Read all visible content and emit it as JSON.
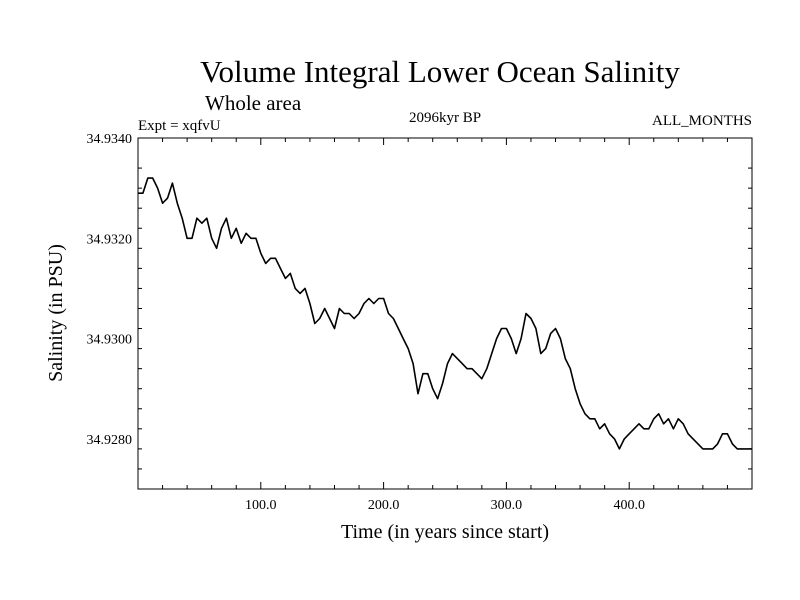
{
  "chart_data": {
    "type": "line",
    "title": "Volume Integral Lower Ocean Salinity",
    "subtitle": "Whole area",
    "experiment_label": "Expt = xqfvU",
    "period_label": "2096kyr BP",
    "months_label": "ALL_MONTHS",
    "xlabel": "Time (in years since start)",
    "ylabel": "Salinity (in PSU)",
    "xlim": [
      0,
      500
    ],
    "ylim": [
      34.927,
      34.934
    ],
    "xticks": [
      100,
      200,
      300,
      400
    ],
    "xtick_labels": [
      "100.0",
      "200.0",
      "300.0",
      "400.0"
    ],
    "yticks": [
      34.928,
      34.93,
      34.932,
      34.934
    ],
    "ytick_labels": [
      "34.9280",
      "34.9300",
      "34.9320",
      "34.9340"
    ],
    "grid": false,
    "series": [
      {
        "name": "Salinity",
        "color": "#000000",
        "x": [
          0,
          4,
          8,
          12,
          16,
          20,
          24,
          28,
          32,
          36,
          40,
          44,
          48,
          52,
          56,
          60,
          64,
          68,
          72,
          76,
          80,
          84,
          88,
          92,
          96,
          100,
          104,
          108,
          112,
          116,
          120,
          124,
          128,
          132,
          136,
          140,
          144,
          148,
          152,
          156,
          160,
          164,
          168,
          172,
          176,
          180,
          184,
          188,
          192,
          196,
          200,
          204,
          208,
          212,
          216,
          220,
          224,
          228,
          232,
          236,
          240,
          244,
          248,
          252,
          256,
          260,
          264,
          268,
          272,
          276,
          280,
          284,
          288,
          292,
          296,
          300,
          304,
          308,
          312,
          316,
          320,
          324,
          328,
          332,
          336,
          340,
          344,
          348,
          352,
          356,
          360,
          364,
          368,
          372,
          376,
          380,
          384,
          388,
          392,
          396,
          400,
          404,
          408,
          412,
          416,
          420,
          424,
          428,
          432,
          436,
          440,
          444,
          448,
          452,
          456,
          460,
          464,
          468,
          472,
          476,
          480,
          484,
          488,
          492,
          496,
          500
        ],
        "values": [
          34.9329,
          34.9329,
          34.9332,
          34.9332,
          34.933,
          34.9327,
          34.9328,
          34.9331,
          34.9327,
          34.9324,
          34.932,
          34.932,
          34.9324,
          34.9323,
          34.9324,
          34.932,
          34.9318,
          34.9322,
          34.9324,
          34.932,
          34.9322,
          34.9319,
          34.9321,
          34.932,
          34.932,
          34.9317,
          34.9315,
          34.9316,
          34.9316,
          34.9314,
          34.9312,
          34.9313,
          34.931,
          34.9309,
          34.931,
          34.9307,
          34.9303,
          34.9304,
          34.9306,
          34.9304,
          34.9302,
          34.9306,
          34.9305,
          34.9305,
          34.9304,
          34.9305,
          34.9307,
          34.9308,
          34.9307,
          34.9308,
          34.9308,
          34.9305,
          34.9304,
          34.9302,
          34.93,
          34.9298,
          34.9295,
          34.9289,
          34.9293,
          34.9293,
          34.929,
          34.9288,
          34.9291,
          34.9295,
          34.9297,
          34.9296,
          34.9295,
          34.9294,
          34.9294,
          34.9293,
          34.9292,
          34.9294,
          34.9297,
          34.93,
          34.9302,
          34.9302,
          34.93,
          34.9297,
          34.93,
          34.9305,
          34.9304,
          34.9302,
          34.9297,
          34.9298,
          34.9301,
          34.9302,
          34.93,
          34.9296,
          34.9294,
          34.929,
          34.9287,
          34.9285,
          34.9284,
          34.9284,
          34.9282,
          34.9283,
          34.9281,
          34.928,
          34.9278,
          34.928,
          34.9281,
          34.9282,
          34.9283,
          34.9282,
          34.9282,
          34.9284,
          34.9285,
          34.9283,
          34.9284,
          34.9282,
          34.9284,
          34.9283,
          34.9281,
          34.928,
          34.9279,
          34.9278,
          34.9278,
          34.9278,
          34.9279,
          34.9281,
          34.9281,
          34.9279,
          34.9278,
          34.9278,
          34.9278,
          34.9278
        ]
      }
    ]
  }
}
